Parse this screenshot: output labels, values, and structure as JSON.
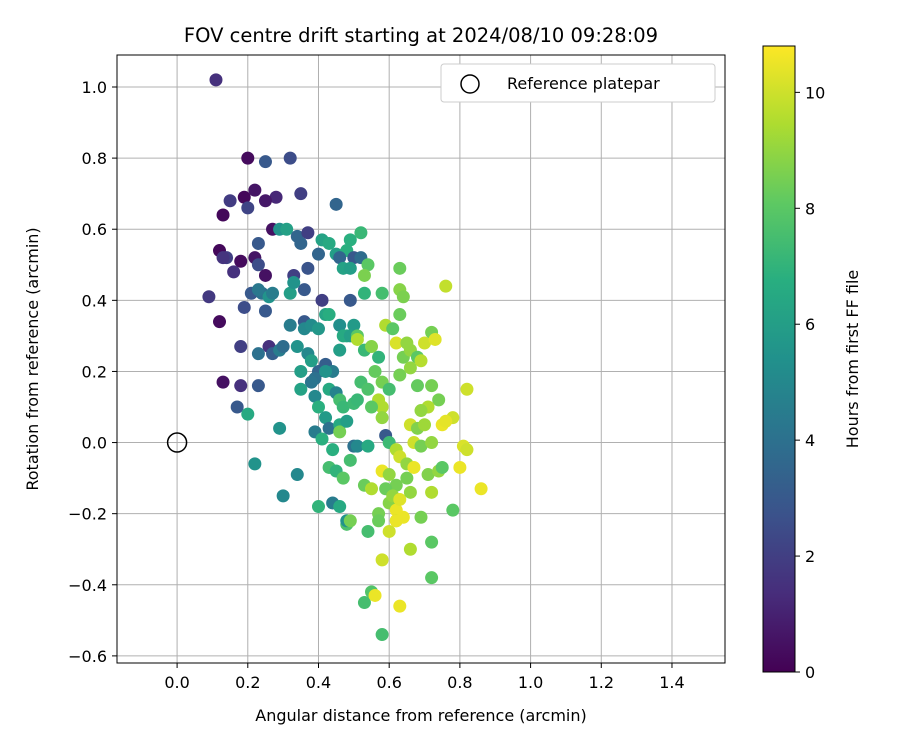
{
  "chart_data": {
    "type": "scatter",
    "title": "FOV centre drift starting at 2024/08/10 09:28:09",
    "xlabel": "Angular distance from reference (arcmin)",
    "ylabel": "Rotation from reference (arcmin)",
    "xlim": [
      -0.17,
      1.55
    ],
    "ylim": [
      -0.62,
      1.09
    ],
    "xticks": [
      "0.0",
      "0.2",
      "0.4",
      "0.6",
      "0.8",
      "1.0",
      "1.2",
      "1.4"
    ],
    "xtick_values": [
      0.0,
      0.2,
      0.4,
      0.6,
      0.8,
      1.0,
      1.2,
      1.4
    ],
    "yticks": [
      "−0.6",
      "−0.4",
      "−0.2",
      "0.0",
      "0.2",
      "0.4",
      "0.6",
      "0.8",
      "1.0"
    ],
    "ytick_values": [
      -0.6,
      -0.4,
      -0.2,
      0.0,
      0.2,
      0.4,
      0.6,
      0.8,
      1.0
    ],
    "grid": true,
    "legend_position": "top-right",
    "legend": [
      {
        "label": "Reference platepar",
        "marker": "open-circle"
      }
    ],
    "reference_point": {
      "x": 0.0,
      "y": 0.0
    },
    "colorbar": {
      "label": "Hours from first FF file",
      "range": [
        0,
        10.8
      ],
      "ticks": [
        "0",
        "2",
        "4",
        "6",
        "8",
        "10"
      ],
      "tick_values": [
        0,
        2,
        4,
        6,
        8,
        10
      ],
      "colormap": "viridis"
    },
    "points": [
      [
        0.11,
        1.02,
        1.5
      ],
      [
        0.2,
        0.8,
        0.3
      ],
      [
        0.25,
        0.79,
        3.0
      ],
      [
        0.32,
        0.8,
        2.5
      ],
      [
        0.35,
        0.7,
        2.0
      ],
      [
        0.28,
        0.69,
        1.2
      ],
      [
        0.22,
        0.71,
        0.6
      ],
      [
        0.19,
        0.69,
        0.2
      ],
      [
        0.25,
        0.68,
        0.7
      ],
      [
        0.15,
        0.68,
        1.9
      ],
      [
        0.2,
        0.66,
        2.2
      ],
      [
        0.13,
        0.64,
        0.2
      ],
      [
        0.45,
        0.67,
        3.5
      ],
      [
        0.27,
        0.6,
        0.5
      ],
      [
        0.29,
        0.6,
        5.5
      ],
      [
        0.31,
        0.6,
        6.1
      ],
      [
        0.34,
        0.58,
        3.5
      ],
      [
        0.37,
        0.59,
        2.0
      ],
      [
        0.41,
        0.57,
        6.2
      ],
      [
        0.23,
        0.56,
        3.0
      ],
      [
        0.35,
        0.56,
        3.5
      ],
      [
        0.43,
        0.56,
        6.5
      ],
      [
        0.12,
        0.54,
        0.2
      ],
      [
        0.14,
        0.52,
        2.0
      ],
      [
        0.18,
        0.51,
        0.3
      ],
      [
        0.22,
        0.52,
        0.6
      ],
      [
        0.23,
        0.5,
        2.5
      ],
      [
        0.13,
        0.52,
        1.6
      ],
      [
        0.45,
        0.53,
        6.0
      ],
      [
        0.48,
        0.54,
        6.8
      ],
      [
        0.49,
        0.57,
        6.8
      ],
      [
        0.52,
        0.59,
        7.2
      ],
      [
        0.46,
        0.52,
        3.5
      ],
      [
        0.5,
        0.52,
        3.0
      ],
      [
        0.47,
        0.49,
        6.2
      ],
      [
        0.49,
        0.49,
        6.0
      ],
      [
        0.52,
        0.52,
        3.8
      ],
      [
        0.4,
        0.53,
        3.5
      ],
      [
        0.37,
        0.49,
        2.8
      ],
      [
        0.33,
        0.47,
        2.0
      ],
      [
        0.25,
        0.47,
        0.5
      ],
      [
        0.16,
        0.48,
        1.5
      ],
      [
        0.09,
        0.41,
        1.8
      ],
      [
        0.21,
        0.42,
        3.0
      ],
      [
        0.24,
        0.42,
        4.0
      ],
      [
        0.26,
        0.41,
        5.5
      ],
      [
        0.27,
        0.42,
        4.5
      ],
      [
        0.23,
        0.43,
        4.3
      ],
      [
        0.32,
        0.42,
        6.0
      ],
      [
        0.36,
        0.43,
        3.0
      ],
      [
        0.33,
        0.45,
        5.5
      ],
      [
        0.19,
        0.38,
        2.5
      ],
      [
        0.25,
        0.37,
        3.0
      ],
      [
        0.41,
        0.4,
        2.0
      ],
      [
        0.49,
        0.4,
        3.0
      ],
      [
        0.36,
        0.34,
        3.0
      ],
      [
        0.32,
        0.33,
        4.5
      ],
      [
        0.36,
        0.32,
        5.0
      ],
      [
        0.38,
        0.33,
        5.2
      ],
      [
        0.4,
        0.32,
        5.7
      ],
      [
        0.42,
        0.36,
        6.3
      ],
      [
        0.43,
        0.36,
        6.7
      ],
      [
        0.46,
        0.33,
        5.3
      ],
      [
        0.48,
        0.3,
        6.5
      ],
      [
        0.5,
        0.33,
        5.8
      ],
      [
        0.53,
        0.42,
        7.0
      ],
      [
        0.54,
        0.5,
        8.0
      ],
      [
        0.53,
        0.47,
        8.6
      ],
      [
        0.58,
        0.42,
        7.5
      ],
      [
        0.63,
        0.43,
        8.8
      ],
      [
        0.64,
        0.41,
        8.6
      ],
      [
        0.63,
        0.49,
        8.3
      ],
      [
        0.76,
        0.44,
        9.8
      ],
      [
        0.12,
        0.34,
        0.3
      ],
      [
        0.18,
        0.27,
        2.0
      ],
      [
        0.23,
        0.25,
        4.0
      ],
      [
        0.26,
        0.27,
        1.5
      ],
      [
        0.27,
        0.25,
        3.2
      ],
      [
        0.29,
        0.26,
        4.5
      ],
      [
        0.3,
        0.27,
        3.8
      ],
      [
        0.34,
        0.27,
        5.5
      ],
      [
        0.37,
        0.25,
        5.0
      ],
      [
        0.38,
        0.23,
        6.0
      ],
      [
        0.4,
        0.2,
        3.5
      ],
      [
        0.42,
        0.22,
        3.2
      ],
      [
        0.44,
        0.2,
        4.5
      ],
      [
        0.46,
        0.26,
        6.0
      ],
      [
        0.47,
        0.3,
        6.5
      ],
      [
        0.49,
        0.3,
        6.0
      ],
      [
        0.51,
        0.3,
        8.0
      ],
      [
        0.51,
        0.29,
        9.5
      ],
      [
        0.53,
        0.26,
        7.2
      ],
      [
        0.55,
        0.27,
        8.8
      ],
      [
        0.57,
        0.24,
        7.0
      ],
      [
        0.59,
        0.33,
        9.5
      ],
      [
        0.61,
        0.32,
        8.0
      ],
      [
        0.63,
        0.36,
        8.3
      ],
      [
        0.62,
        0.28,
        10.2
      ],
      [
        0.64,
        0.24,
        8.5
      ],
      [
        0.65,
        0.28,
        9.0
      ],
      [
        0.66,
        0.26,
        9.0
      ],
      [
        0.68,
        0.24,
        8.0
      ],
      [
        0.7,
        0.28,
        10.0
      ],
      [
        0.69,
        0.23,
        9.6
      ],
      [
        0.72,
        0.31,
        8.5
      ],
      [
        0.73,
        0.29,
        10.3
      ],
      [
        0.13,
        0.17,
        0.5
      ],
      [
        0.18,
        0.16,
        1.5
      ],
      [
        0.23,
        0.16,
        3.0
      ],
      [
        0.17,
        0.1,
        3.0
      ],
      [
        0.2,
        0.08,
        6.5
      ],
      [
        0.35,
        0.2,
        6.0
      ],
      [
        0.35,
        0.15,
        6.2
      ],
      [
        0.39,
        0.18,
        4.0
      ],
      [
        0.42,
        0.2,
        5.5
      ],
      [
        0.38,
        0.17,
        4.2
      ],
      [
        0.43,
        0.15,
        6.5
      ],
      [
        0.45,
        0.14,
        4.8
      ],
      [
        0.39,
        0.13,
        5.0
      ],
      [
        0.4,
        0.1,
        6.8
      ],
      [
        0.42,
        0.07,
        5.8
      ],
      [
        0.46,
        0.12,
        7.5
      ],
      [
        0.47,
        0.1,
        7.2
      ],
      [
        0.5,
        0.11,
        7.3
      ],
      [
        0.51,
        0.12,
        7.2
      ],
      [
        0.52,
        0.17,
        7.5
      ],
      [
        0.54,
        0.15,
        7.7
      ],
      [
        0.56,
        0.2,
        8.2
      ],
      [
        0.58,
        0.17,
        8.5
      ],
      [
        0.57,
        0.12,
        9.5
      ],
      [
        0.58,
        0.1,
        9.5
      ],
      [
        0.55,
        0.1,
        8.0
      ],
      [
        0.58,
        0.07,
        9.0
      ],
      [
        0.6,
        0.15,
        7.5
      ],
      [
        0.63,
        0.19,
        8.5
      ],
      [
        0.66,
        0.21,
        9.0
      ],
      [
        0.68,
        0.16,
        8.2
      ],
      [
        0.72,
        0.16,
        8.5
      ],
      [
        0.74,
        0.12,
        8.5
      ],
      [
        0.71,
        0.1,
        9.5
      ],
      [
        0.69,
        0.09,
        9.0
      ],
      [
        0.66,
        0.05,
        10.0
      ],
      [
        0.68,
        0.04,
        8.7
      ],
      [
        0.7,
        0.05,
        9.2
      ],
      [
        0.75,
        0.05,
        10.5
      ],
      [
        0.78,
        0.07,
        10.0
      ],
      [
        0.76,
        0.06,
        10.4
      ],
      [
        0.82,
        0.15,
        10.0
      ],
      [
        0.29,
        0.04,
        5.5
      ],
      [
        0.39,
        0.03,
        4.5
      ],
      [
        0.43,
        0.04,
        4.0
      ],
      [
        0.46,
        0.05,
        6.5
      ],
      [
        0.46,
        0.03,
        8.5
      ],
      [
        0.48,
        0.06,
        6.0
      ],
      [
        0.41,
        0.01,
        6.8
      ],
      [
        0.44,
        -0.02,
        6.8
      ],
      [
        0.5,
        -0.01,
        4.0
      ],
      [
        0.51,
        -0.01,
        5.0
      ],
      [
        0.54,
        -0.01,
        6.5
      ],
      [
        0.59,
        0.02,
        3.0
      ],
      [
        0.6,
        0.0,
        7.3
      ],
      [
        0.62,
        -0.02,
        9.5
      ],
      [
        0.63,
        -0.04,
        10.0
      ],
      [
        0.65,
        -0.06,
        9.0
      ],
      [
        0.67,
        0.0,
        10.0
      ],
      [
        0.69,
        -0.01,
        8.5
      ],
      [
        0.72,
        0.0,
        9.0
      ],
      [
        0.81,
        -0.01,
        10.2
      ],
      [
        0.82,
        -0.02,
        10.0
      ],
      [
        0.8,
        -0.07,
        10.5
      ],
      [
        0.22,
        -0.06,
        5.5
      ],
      [
        0.34,
        -0.09,
        5.0
      ],
      [
        0.43,
        -0.07,
        7.5
      ],
      [
        0.45,
        -0.08,
        7.0
      ],
      [
        0.47,
        -0.1,
        8.0
      ],
      [
        0.49,
        -0.05,
        7.5
      ],
      [
        0.53,
        -0.12,
        8.3
      ],
      [
        0.55,
        -0.13,
        9.5
      ],
      [
        0.58,
        -0.08,
        10.5
      ],
      [
        0.6,
        -0.09,
        9.0
      ],
      [
        0.62,
        -0.12,
        8.5
      ],
      [
        0.65,
        -0.1,
        8.5
      ],
      [
        0.67,
        -0.07,
        10.5
      ],
      [
        0.71,
        -0.09,
        8.7
      ],
      [
        0.74,
        -0.08,
        9.0
      ],
      [
        0.75,
        -0.07,
        8.0
      ],
      [
        0.3,
        -0.15,
        5.0
      ],
      [
        0.4,
        -0.18,
        7.0
      ],
      [
        0.44,
        -0.17,
        4.5
      ],
      [
        0.46,
        -0.18,
        6.5
      ],
      [
        0.48,
        -0.23,
        7.7
      ],
      [
        0.48,
        -0.22,
        5.5
      ],
      [
        0.49,
        -0.22,
        8.5
      ],
      [
        0.54,
        -0.25,
        7.5
      ],
      [
        0.57,
        -0.2,
        8.5
      ],
      [
        0.59,
        -0.13,
        8.3
      ],
      [
        0.6,
        -0.17,
        8.8
      ],
      [
        0.61,
        -0.15,
        9.0
      ],
      [
        0.62,
        -0.19,
        10.5
      ],
      [
        0.62,
        -0.22,
        9.5
      ],
      [
        0.63,
        -0.16,
        10.3
      ],
      [
        0.64,
        -0.21,
        10.5
      ],
      [
        0.66,
        -0.14,
        9.0
      ],
      [
        0.69,
        -0.21,
        8.5
      ],
      [
        0.72,
        -0.14,
        9.5
      ],
      [
        0.78,
        -0.19,
        8.0
      ],
      [
        0.86,
        -0.13,
        10.5
      ],
      [
        0.57,
        -0.22,
        8.3
      ],
      [
        0.6,
        -0.25,
        10.0
      ],
      [
        0.62,
        -0.22,
        10.5
      ],
      [
        0.72,
        -0.28,
        8.0
      ],
      [
        0.58,
        -0.33,
        10.0
      ],
      [
        0.66,
        -0.3,
        9.5
      ],
      [
        0.53,
        -0.45,
        7.5
      ],
      [
        0.55,
        -0.42,
        7.8
      ],
      [
        0.56,
        -0.43,
        10.5
      ],
      [
        0.63,
        -0.46,
        10.5
      ],
      [
        0.72,
        -0.38,
        8.0
      ],
      [
        0.58,
        -0.54,
        7.5
      ]
    ]
  }
}
